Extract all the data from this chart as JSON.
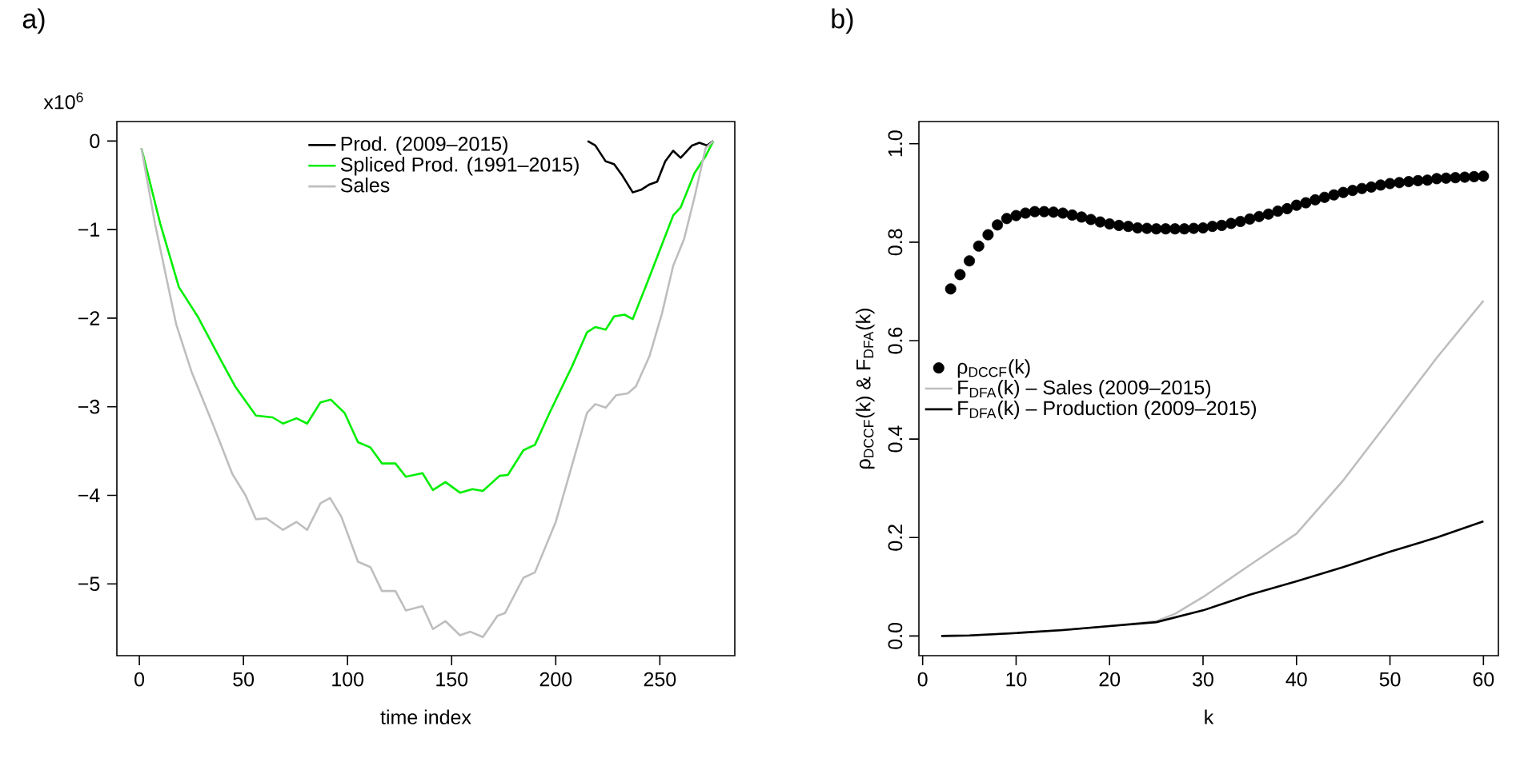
{
  "chart_data": [
    {
      "type": "line",
      "title": "a)",
      "xlabel": "time index",
      "annotations": [
        "x10$^{6}$"
      ],
      "legend": "top",
      "xlim": [
        -10.8,
        286
      ],
      "ylim": [
        -5.81,
        0.22
      ],
      "xticks": [
        0,
        50,
        100,
        150,
        200,
        250
      ],
      "yticks": [
        {
          "value": 0,
          "label": "0"
        },
        {
          "value": -1,
          "label": "−1"
        },
        {
          "value": -2,
          "label": "−2"
        },
        {
          "value": -3,
          "label": "−3"
        },
        {
          "value": -4,
          "label": "−4"
        },
        {
          "value": -5,
          "label": "−5"
        }
      ],
      "series": [
        {
          "name": "Prod. (2009–2015)",
          "color": "#000000",
          "x": [
            215.3,
            219,
            224,
            228,
            232,
            237,
            241,
            245,
            248.7,
            252.6,
            256.4,
            260,
            265.5,
            269,
            272.7,
            275.7
          ],
          "values": [
            0.0,
            -0.05,
            -0.23,
            -0.26,
            -0.39,
            -0.58,
            -0.55,
            -0.49,
            -0.46,
            -0.23,
            -0.11,
            -0.19,
            -0.05,
            -0.02,
            -0.05,
            0.0
          ]
        },
        {
          "name": "Spliced Prod. (1991–2015)",
          "color": "#00ee00",
          "x": [
            1,
            10,
            19,
            28,
            39.5,
            46,
            56,
            64,
            69,
            75.5,
            80.6,
            87,
            92,
            98.6,
            105,
            111,
            116.5,
            123,
            128,
            136,
            141,
            147,
            154,
            160,
            165,
            173,
            177,
            184.5,
            190,
            197,
            207.7,
            215,
            219,
            224,
            228,
            233,
            237,
            243.6,
            251,
            256.4,
            260,
            266.7,
            272,
            275.7
          ],
          "values": [
            -0.08,
            -0.93,
            -1.65,
            -1.98,
            -2.49,
            -2.77,
            -3.1,
            -3.12,
            -3.19,
            -3.13,
            -3.19,
            -2.95,
            -2.92,
            -3.07,
            -3.4,
            -3.46,
            -3.64,
            -3.64,
            -3.79,
            -3.75,
            -3.94,
            -3.85,
            -3.97,
            -3.93,
            -3.95,
            -3.78,
            -3.77,
            -3.49,
            -3.43,
            -3.07,
            -2.55,
            -2.16,
            -2.1,
            -2.13,
            -1.98,
            -1.96,
            -2.01,
            -1.62,
            -1.17,
            -0.84,
            -0.75,
            -0.36,
            -0.17,
            0.0
          ]
        },
        {
          "name": "Sales",
          "color": "#bebebe",
          "x": [
            1,
            7.5,
            17.7,
            25,
            35.7,
            44.7,
            51,
            56,
            61,
            69,
            75.5,
            80.6,
            87,
            91.6,
            97,
            105,
            111,
            116.5,
            123,
            128,
            136,
            141,
            147,
            154,
            159,
            165,
            172,
            175.6,
            184.5,
            190,
            200,
            207.7,
            215,
            219,
            224,
            229,
            234.6,
            238.5,
            245,
            251,
            256.4,
            261.6,
            266.7,
            272,
            275.7
          ],
          "values": [
            -0.08,
            -0.93,
            -2.07,
            -2.6,
            -3.22,
            -3.76,
            -4.0,
            -4.27,
            -4.26,
            -4.39,
            -4.3,
            -4.39,
            -4.09,
            -4.03,
            -4.24,
            -4.75,
            -4.81,
            -5.08,
            -5.08,
            -5.3,
            -5.25,
            -5.51,
            -5.42,
            -5.58,
            -5.54,
            -5.6,
            -5.36,
            -5.33,
            -4.93,
            -4.87,
            -4.3,
            -3.67,
            -3.07,
            -2.97,
            -3.01,
            -2.87,
            -2.85,
            -2.77,
            -2.43,
            -1.95,
            -1.41,
            -1.11,
            -0.63,
            -0.08,
            0.0
          ]
        }
      ]
    },
    {
      "type": "line",
      "title": "b)",
      "xlabel": "k",
      "ylabel": "ρ$_{DCCF}$(k) & F$_{DFA}$(k)",
      "legend": "left",
      "xlim": [
        -0.4,
        61.6
      ],
      "ylim": [
        -0.04,
        1.045
      ],
      "xticks": [
        0,
        10,
        20,
        30,
        40,
        50,
        60
      ],
      "yticks": [
        {
          "value": 0,
          "label": "0.0"
        },
        {
          "value": 0.2,
          "label": "0.2"
        },
        {
          "value": 0.4,
          "label": "0.4"
        },
        {
          "value": 0.6,
          "label": "0.6"
        },
        {
          "value": 0.8,
          "label": "0.8"
        },
        {
          "value": 1,
          "label": "1.0"
        }
      ],
      "series": [
        {
          "name": "ρ$_{DCCF}$(k)",
          "type": "scatter",
          "marker": "circle",
          "color": "#000000",
          "x": [
            3,
            4,
            5,
            6,
            7,
            8,
            9,
            10,
            11,
            12,
            13,
            14,
            15,
            16,
            17,
            18,
            19,
            20,
            21,
            22,
            23,
            24,
            25,
            26,
            27,
            28,
            29,
            30,
            31,
            32,
            33,
            34,
            35,
            36,
            37,
            38,
            39,
            40,
            41,
            42,
            43,
            44,
            45,
            46,
            47,
            48,
            49,
            50,
            51,
            52,
            53,
            54,
            55,
            56,
            57,
            58,
            59,
            60
          ],
          "values": [
            0.705,
            0.734,
            0.762,
            0.792,
            0.815,
            0.835,
            0.848,
            0.854,
            0.859,
            0.862,
            0.862,
            0.861,
            0.859,
            0.855,
            0.851,
            0.846,
            0.841,
            0.837,
            0.834,
            0.832,
            0.829,
            0.828,
            0.827,
            0.827,
            0.827,
            0.827,
            0.828,
            0.829,
            0.832,
            0.834,
            0.838,
            0.842,
            0.847,
            0.852,
            0.857,
            0.863,
            0.868,
            0.875,
            0.88,
            0.886,
            0.891,
            0.896,
            0.901,
            0.905,
            0.909,
            0.912,
            0.916,
            0.919,
            0.921,
            0.923,
            0.925,
            0.926,
            0.929,
            0.93,
            0.931,
            0.932,
            0.933,
            0.934
          ]
        },
        {
          "name": "F$_{DFA}$(k) – Sales (2009–2015)",
          "color": "#bebebe",
          "x": [
            2,
            5,
            10,
            15,
            20,
            25,
            27,
            30,
            35,
            40,
            45,
            50,
            55,
            60
          ],
          "values": [
            0.0,
            0.001,
            0.006,
            0.012,
            0.02,
            0.03,
            0.045,
            0.079,
            0.144,
            0.208,
            0.316,
            0.44,
            0.565,
            0.681
          ]
        },
        {
          "name": "F$_{DFA}$(k) – Production (2009–2015)",
          "color": "#000000",
          "x": [
            2,
            5,
            10,
            15,
            20,
            25,
            30,
            35,
            40,
            45,
            50,
            55,
            60
          ],
          "values": [
            0.0,
            0.001,
            0.006,
            0.012,
            0.02,
            0.028,
            0.052,
            0.084,
            0.111,
            0.14,
            0.171,
            0.2,
            0.233
          ]
        }
      ]
    }
  ]
}
